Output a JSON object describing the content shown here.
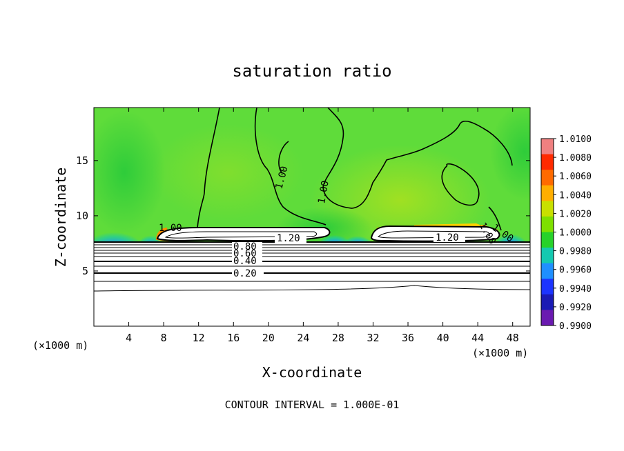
{
  "chart_data": {
    "type": "heatmap",
    "title": "saturation ratio",
    "xlabel": "X-coordinate",
    "ylabel": "Z-coordinate",
    "x_unit": "(×1000 m)",
    "z_unit": "(×1000 m)",
    "xlim": [
      0,
      50
    ],
    "ylim": [
      0,
      19.8
    ],
    "x_ticks": [
      4,
      8,
      12,
      16,
      20,
      24,
      28,
      32,
      36,
      40,
      44,
      48
    ],
    "y_ticks": [
      5,
      10,
      15
    ],
    "contour_labels": [
      "1.00",
      "1.20",
      "1.00",
      "1.20",
      "1.00",
      "1.00",
      "1.00",
      "0.80",
      "0.60",
      "0.40",
      "0.20"
    ],
    "contour_note": "CONTOUR INTERVAL = 1.000E-01",
    "colorbar": {
      "labels": [
        "1.0100",
        "1.0080",
        "1.0060",
        "1.0040",
        "1.0020",
        "1.0000",
        "0.9980",
        "0.9960",
        "0.9940",
        "0.9920",
        "0.9900"
      ],
      "colors": [
        "#f08080",
        "#ff2a00",
        "#ff6a00",
        "#ffae00",
        "#c8e000",
        "#7ee000",
        "#27d22a",
        "#14c9b0",
        "#1f8fff",
        "#1c34ff",
        "#1a1ab4",
        "#6a1ab0"
      ]
    }
  }
}
